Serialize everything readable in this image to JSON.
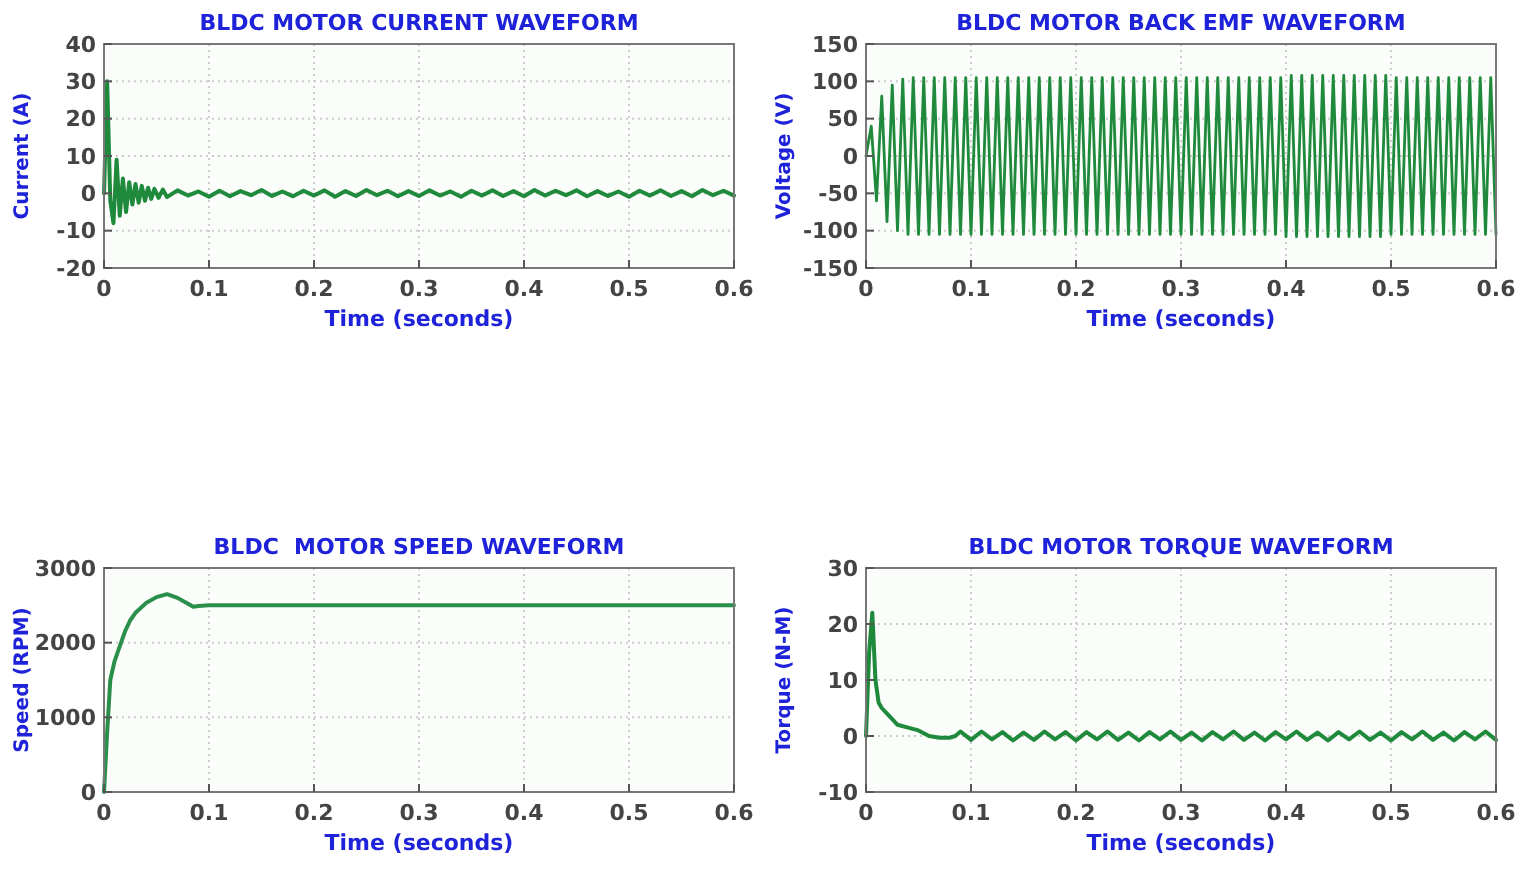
{
  "chart_data": [
    {
      "type": "line",
      "title": "BLDC MOTOR CURRENT WAVEFORM",
      "xlabel": "Time (seconds)",
      "ylabel": "Current (A)",
      "xlim": [
        0,
        0.6
      ],
      "xticks": [
        0,
        0.1,
        0.2,
        0.3,
        0.4,
        0.5,
        0.6
      ],
      "ylim": [
        -20,
        40
      ],
      "yticks": [
        -20,
        -10,
        0,
        10,
        20,
        30,
        40
      ],
      "grid": true,
      "series": [
        {
          "color": "#1f8a3c",
          "x": [
            0,
            0.003,
            0.006,
            0.009,
            0.012,
            0.015,
            0.018,
            0.021,
            0.024,
            0.027,
            0.03,
            0.033,
            0.036,
            0.039,
            0.042,
            0.045,
            0.048,
            0.052,
            0.056,
            0.06,
            0.07,
            0.08,
            0.09,
            0.1,
            0.11,
            0.12,
            0.13,
            0.14,
            0.15,
            0.16,
            0.17,
            0.18,
            0.19,
            0.2,
            0.21,
            0.22,
            0.23,
            0.24,
            0.25,
            0.26,
            0.27,
            0.28,
            0.29,
            0.3,
            0.31,
            0.32,
            0.33,
            0.34,
            0.35,
            0.36,
            0.37,
            0.38,
            0.39,
            0.4,
            0.41,
            0.42,
            0.43,
            0.44,
            0.45,
            0.46,
            0.47,
            0.48,
            0.49,
            0.5,
            0.51,
            0.52,
            0.53,
            0.54,
            0.55,
            0.56,
            0.57,
            0.58,
            0.59,
            0.6
          ],
          "values": [
            0,
            30,
            -2,
            -8,
            9,
            -6,
            4,
            -5,
            3,
            -3,
            2.5,
            -2.5,
            2,
            -2,
            1.5,
            -1.5,
            1.2,
            -1.2,
            1,
            -1,
            0.8,
            -0.6,
            0.5,
            -0.9,
            0.7,
            -0.8,
            0.6,
            -0.5,
            0.9,
            -0.7,
            0.5,
            -0.8,
            0.7,
            -0.6,
            0.8,
            -0.9,
            0.6,
            -0.7,
            0.9,
            -0.5,
            0.7,
            -0.8,
            0.6,
            -0.7,
            0.8,
            -0.6,
            0.5,
            -0.9,
            0.7,
            -0.6,
            0.8,
            -0.7,
            0.6,
            -0.8,
            0.9,
            -0.6,
            0.7,
            -0.5,
            0.8,
            -0.8,
            0.6,
            -0.7,
            0.5,
            -0.9,
            0.7,
            -0.6,
            0.8,
            -0.7,
            0.6,
            -0.8,
            0.9,
            -0.5,
            0.7,
            -0.6
          ]
        }
      ]
    },
    {
      "type": "line",
      "title": "BLDC MOTOR BACK EMF WAVEFORM",
      "xlabel": "Time (seconds)",
      "ylabel": "Voltage (V)",
      "xlim": [
        0,
        0.6
      ],
      "xticks": [
        0,
        0.1,
        0.2,
        0.3,
        0.4,
        0.5,
        0.6
      ],
      "ylim": [
        -150,
        150
      ],
      "yticks": [
        -150,
        -100,
        -50,
        0,
        50,
        100,
        150
      ],
      "grid": true,
      "series": [
        {
          "color": "#1f8a3c",
          "x": [
            0,
            0.005,
            0.01,
            0.015,
            0.02,
            0.025,
            0.03,
            0.035,
            0.04,
            0.045,
            0.05,
            0.055,
            0.06,
            0.065,
            0.07,
            0.075,
            0.08,
            0.085,
            0.09,
            0.095,
            0.1,
            0.105,
            0.11,
            0.115,
            0.12,
            0.125,
            0.13,
            0.135,
            0.14,
            0.145,
            0.15,
            0.155,
            0.16,
            0.165,
            0.17,
            0.175,
            0.18,
            0.185,
            0.19,
            0.195,
            0.2,
            0.205,
            0.21,
            0.215,
            0.22,
            0.225,
            0.23,
            0.235,
            0.24,
            0.245,
            0.25,
            0.255,
            0.26,
            0.265,
            0.27,
            0.275,
            0.28,
            0.285,
            0.29,
            0.295,
            0.3,
            0.305,
            0.31,
            0.315,
            0.32,
            0.325,
            0.33,
            0.335,
            0.34,
            0.345,
            0.35,
            0.355,
            0.36,
            0.365,
            0.37,
            0.375,
            0.38,
            0.385,
            0.39,
            0.395,
            0.4,
            0.405,
            0.41,
            0.415,
            0.42,
            0.425,
            0.43,
            0.435,
            0.44,
            0.445,
            0.45,
            0.455,
            0.46,
            0.465,
            0.47,
            0.475,
            0.48,
            0.485,
            0.49,
            0.495,
            0.5,
            0.505,
            0.51,
            0.515,
            0.52,
            0.525,
            0.53,
            0.535,
            0.54,
            0.545,
            0.55,
            0.555,
            0.56,
            0.565,
            0.57,
            0.575,
            0.58,
            0.585,
            0.59,
            0.595,
            0.6
          ],
          "values": [
            0,
            40,
            -60,
            80,
            -88,
            95,
            -100,
            103,
            -105,
            105,
            -105,
            105,
            -105,
            105,
            -105,
            105,
            -105,
            105,
            -105,
            105,
            -105,
            105,
            -105,
            105,
            -105,
            105,
            -105,
            105,
            -105,
            105,
            -105,
            105,
            -105,
            105,
            -105,
            105,
            -105,
            105,
            -105,
            105,
            -105,
            105,
            -105,
            105,
            -105,
            105,
            -105,
            105,
            -105,
            105,
            -105,
            105,
            -105,
            105,
            -105,
            105,
            -105,
            105,
            -105,
            105,
            -105,
            105,
            -105,
            105,
            -105,
            105,
            -105,
            105,
            -105,
            105,
            -105,
            105,
            -105,
            105,
            -105,
            105,
            -105,
            105,
            -105,
            105,
            -108,
            108,
            -108,
            108,
            -108,
            108,
            -108,
            108,
            -108,
            108,
            -108,
            108,
            -108,
            108,
            -108,
            108,
            -108,
            108,
            -108,
            108,
            -105,
            105,
            -105,
            105,
            -105,
            105,
            -105,
            105,
            -105,
            105,
            -105,
            105,
            -105,
            105,
            -105,
            105,
            -105,
            105,
            -105,
            105,
            -105
          ]
        }
      ]
    },
    {
      "type": "line",
      "title": "BLDC  MOTOR SPEED WAVEFORM",
      "xlabel": "Time (seconds)",
      "ylabel": "Speed (RPM)",
      "xlim": [
        0,
        0.6
      ],
      "xticks": [
        0,
        0.1,
        0.2,
        0.3,
        0.4,
        0.5,
        0.6
      ],
      "ylim": [
        0,
        3000
      ],
      "yticks": [
        0,
        1000,
        2000,
        3000
      ],
      "grid": true,
      "series": [
        {
          "color": "#2a8f4a",
          "x": [
            0,
            0.003,
            0.006,
            0.01,
            0.015,
            0.02,
            0.025,
            0.03,
            0.04,
            0.05,
            0.06,
            0.07,
            0.08,
            0.085,
            0.09,
            0.1,
            0.2,
            0.3,
            0.4,
            0.5,
            0.6
          ],
          "values": [
            0,
            800,
            1500,
            1750,
            1950,
            2150,
            2300,
            2400,
            2530,
            2610,
            2650,
            2600,
            2520,
            2480,
            2490,
            2500,
            2500,
            2500,
            2500,
            2500,
            2500
          ]
        }
      ]
    },
    {
      "type": "line",
      "title": "BLDC MOTOR TORQUE WAVEFORM",
      "xlabel": "Time (seconds)",
      "ylabel": "Torque (N-M)",
      "xlim": [
        0,
        0.6
      ],
      "xticks": [
        0,
        0.1,
        0.2,
        0.3,
        0.4,
        0.5,
        0.6
      ],
      "ylim": [
        -10,
        30
      ],
      "yticks": [
        -10,
        0,
        10,
        20,
        30
      ],
      "grid": true,
      "series": [
        {
          "color": "#1f8a3c",
          "x": [
            0,
            0.003,
            0.006,
            0.009,
            0.012,
            0.015,
            0.02,
            0.025,
            0.03,
            0.04,
            0.05,
            0.06,
            0.07,
            0.08,
            0.085,
            0.09,
            0.1,
            0.11,
            0.12,
            0.13,
            0.14,
            0.15,
            0.16,
            0.17,
            0.18,
            0.19,
            0.2,
            0.21,
            0.22,
            0.23,
            0.24,
            0.25,
            0.26,
            0.27,
            0.28,
            0.29,
            0.3,
            0.31,
            0.32,
            0.33,
            0.34,
            0.35,
            0.36,
            0.37,
            0.38,
            0.39,
            0.4,
            0.41,
            0.42,
            0.43,
            0.44,
            0.45,
            0.46,
            0.47,
            0.48,
            0.49,
            0.5,
            0.51,
            0.52,
            0.53,
            0.54,
            0.55,
            0.56,
            0.57,
            0.58,
            0.59,
            0.6
          ],
          "values": [
            0,
            15,
            22,
            10,
            6,
            5,
            4,
            3,
            2,
            1.5,
            1,
            0,
            -0.3,
            -0.3,
            0,
            0.8,
            -0.7,
            0.8,
            -0.6,
            0.7,
            -0.8,
            0.6,
            -0.7,
            0.8,
            -0.6,
            0.7,
            -0.8,
            0.7,
            -0.6,
            0.8,
            -0.7,
            0.6,
            -0.8,
            0.7,
            -0.6,
            0.8,
            -0.7,
            0.6,
            -0.8,
            0.7,
            -0.6,
            0.8,
            -0.7,
            0.6,
            -0.8,
            0.7,
            -0.6,
            0.8,
            -0.7,
            0.6,
            -0.8,
            0.7,
            -0.6,
            0.8,
            -0.7,
            0.6,
            -0.8,
            0.7,
            -0.6,
            0.8,
            -0.7,
            0.6,
            -0.8,
            0.7,
            -0.6,
            0.8,
            -0.7
          ]
        }
      ]
    }
  ]
}
